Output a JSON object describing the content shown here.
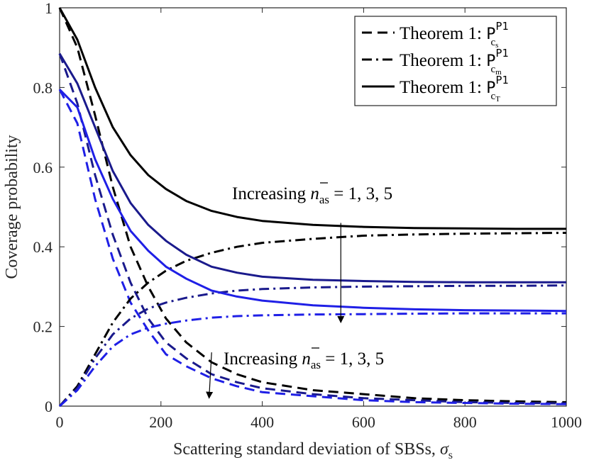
{
  "chart_data": {
    "type": "line",
    "title": "",
    "xlabel": "Scattering standard deviation of SBSs, σs",
    "ylabel": "Coverage probability",
    "xlim": [
      0,
      1000
    ],
    "ylim": [
      0,
      1
    ],
    "xticks": [
      0,
      200,
      400,
      600,
      800,
      1000
    ],
    "yticks": [
      0,
      0.2,
      0.4,
      0.6,
      0.8,
      1
    ],
    "xtick_labels": [
      "0",
      "200",
      "400",
      "600",
      "800",
      "1000"
    ],
    "ytick_labels": [
      "0",
      "0.2",
      "0.4",
      "0.6",
      "0.8",
      "1"
    ],
    "x": [
      0,
      35,
      70,
      105,
      140,
      175,
      210,
      250,
      300,
      350,
      400,
      500,
      600,
      700,
      800,
      900,
      1000
    ],
    "legend": {
      "position": "top-right",
      "entries": [
        {
          "name": "Theorem 1: P^{P1}_{c_s}",
          "label_text": "Theorem 1:",
          "sym": "P",
          "sup": "P1",
          "sub": "c",
          "subsub": "s",
          "style": "dashed"
        },
        {
          "name": "Theorem 1: P^{P1}_{c_m}",
          "label_text": "Theorem 1:",
          "sym": "P",
          "sup": "P1",
          "sub": "c",
          "subsub": "m",
          "style": "dashdot"
        },
        {
          "name": "Theorem 1: P^{P1}_{c_T}",
          "label_text": "Theorem 1:",
          "sym": "P",
          "sup": "P1",
          "sub": "c",
          "subsub": "T",
          "style": "solid"
        }
      ]
    },
    "series": [
      {
        "name": "P_cs, n_as=1",
        "style": "dashed",
        "color": "#000000",
        "values": [
          1.0,
          0.9,
          0.73,
          0.55,
          0.4,
          0.3,
          0.22,
          0.16,
          0.11,
          0.08,
          0.06,
          0.04,
          0.03,
          0.02,
          0.015,
          0.012,
          0.01
        ]
      },
      {
        "name": "P_cs, n_as=3",
        "style": "dashed",
        "color": "#1a1a8c",
        "values": [
          0.885,
          0.76,
          0.58,
          0.43,
          0.31,
          0.22,
          0.16,
          0.12,
          0.08,
          0.06,
          0.045,
          0.03,
          0.02,
          0.015,
          0.01,
          0.008,
          0.007
        ]
      },
      {
        "name": "P_cs, n_as=5",
        "style": "dashed",
        "color": "#1f1fe6",
        "values": [
          0.795,
          0.71,
          0.52,
          0.37,
          0.26,
          0.19,
          0.13,
          0.1,
          0.07,
          0.05,
          0.035,
          0.025,
          0.015,
          0.01,
          0.008,
          0.006,
          0.005
        ]
      },
      {
        "name": "P_cm, n_as=1",
        "style": "dashdot",
        "color": "#000000",
        "values": [
          0.0,
          0.05,
          0.13,
          0.21,
          0.27,
          0.31,
          0.34,
          0.365,
          0.385,
          0.4,
          0.41,
          0.42,
          0.428,
          0.431,
          0.433,
          0.434,
          0.435
        ]
      },
      {
        "name": "P_cm, n_as=3",
        "style": "dashdot",
        "color": "#1a1a8c",
        "values": [
          0.0,
          0.045,
          0.12,
          0.18,
          0.22,
          0.245,
          0.26,
          0.272,
          0.283,
          0.29,
          0.294,
          0.298,
          0.3,
          0.301,
          0.302,
          0.302,
          0.303
        ]
      },
      {
        "name": "P_cm, n_as=5",
        "style": "dashdot",
        "color": "#1f1fe6",
        "values": [
          0.0,
          0.04,
          0.1,
          0.15,
          0.18,
          0.197,
          0.207,
          0.215,
          0.222,
          0.226,
          0.228,
          0.23,
          0.231,
          0.232,
          0.233,
          0.233,
          0.233
        ]
      },
      {
        "name": "P_cT, n_as=1",
        "style": "solid",
        "color": "#000000",
        "values": [
          1.0,
          0.92,
          0.8,
          0.7,
          0.63,
          0.58,
          0.545,
          0.515,
          0.49,
          0.475,
          0.465,
          0.455,
          0.45,
          0.447,
          0.446,
          0.445,
          0.445
        ]
      },
      {
        "name": "P_cT, n_as=3",
        "style": "solid",
        "color": "#1a1a8c",
        "values": [
          0.885,
          0.81,
          0.7,
          0.59,
          0.51,
          0.455,
          0.415,
          0.38,
          0.35,
          0.335,
          0.325,
          0.317,
          0.314,
          0.312,
          0.311,
          0.311,
          0.311
        ]
      },
      {
        "name": "P_cT, n_as=5",
        "style": "solid",
        "color": "#1f1fe6",
        "values": [
          0.795,
          0.75,
          0.62,
          0.52,
          0.44,
          0.39,
          0.35,
          0.32,
          0.29,
          0.275,
          0.265,
          0.253,
          0.247,
          0.243,
          0.241,
          0.24,
          0.239
        ]
      }
    ],
    "annotations": [
      {
        "text_prefix": "Increasing",
        "var": "n",
        "var_sub": "as",
        "text_suffix": "= 1, 3, 5",
        "from": [
          555,
          0.46
        ],
        "to": [
          555,
          0.21
        ]
      },
      {
        "text_prefix": "Increasing",
        "var": "n",
        "var_sub": "as",
        "text_suffix": "= 1, 3, 5",
        "from": [
          300,
          0.135
        ],
        "to": [
          295,
          0.02
        ]
      }
    ]
  }
}
